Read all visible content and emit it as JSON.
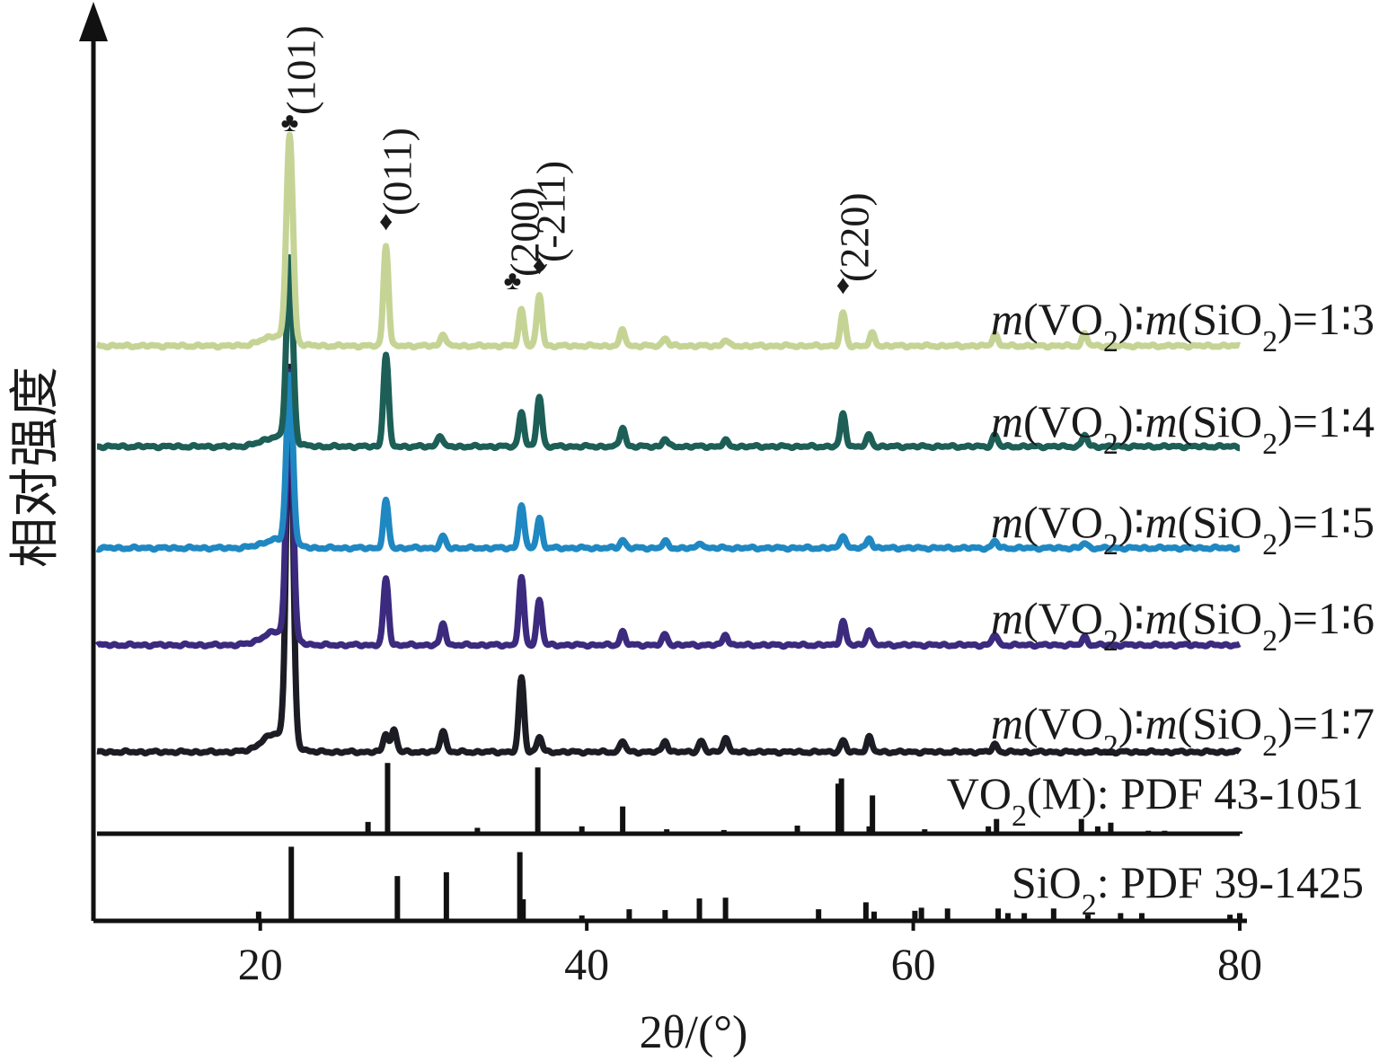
{
  "chart_data": {
    "type": "line",
    "xlabel": "2θ/(°)",
    "ylabel": "相对强度",
    "xlim": [
      10,
      80
    ],
    "x_ticks": [
      "20",
      "40",
      "60",
      "80"
    ],
    "grid": false,
    "legend": "labels at right of each curve",
    "series": [
      {
        "name": "m(VO₂)∶m(SiO₂)=1∶3",
        "label_parts": [
          "m",
          "(VO",
          "2",
          ")∶",
          "m",
          "(SiO",
          "2",
          ")=1∶3"
        ],
        "color": "#c5d495",
        "peaks": [
          [
            21.8,
            1.0
          ],
          [
            27.7,
            0.49
          ],
          [
            31.2,
            0.06
          ],
          [
            36.0,
            0.18
          ],
          [
            37.1,
            0.25
          ],
          [
            42.2,
            0.08
          ],
          [
            44.8,
            0.04
          ],
          [
            48.5,
            0.03
          ],
          [
            55.7,
            0.16
          ],
          [
            57.5,
            0.06
          ],
          [
            65.0,
            0.06
          ],
          [
            70.5,
            0.06
          ]
        ]
      },
      {
        "name": "m(VO₂)∶m(SiO₂)=1∶4",
        "label_parts": [
          "m",
          "(VO",
          "2",
          ")∶",
          "m",
          "(SiO",
          "2",
          ")=1∶4"
        ],
        "color": "#1d5f57",
        "peaks": [
          [
            21.8,
            0.95
          ],
          [
            27.7,
            0.48
          ],
          [
            31.0,
            0.06
          ],
          [
            36.0,
            0.18
          ],
          [
            37.1,
            0.26
          ],
          [
            42.2,
            0.1
          ],
          [
            44.8,
            0.04
          ],
          [
            48.5,
            0.03
          ],
          [
            55.7,
            0.17
          ],
          [
            57.3,
            0.06
          ],
          [
            65.0,
            0.06
          ],
          [
            70.5,
            0.06
          ]
        ]
      },
      {
        "name": "m(VO₂)∶m(SiO₂)=1∶5",
        "label_parts": [
          "m",
          "(VO",
          "2",
          ")∶",
          "m",
          "(SiO",
          "2",
          ")=1∶5"
        ],
        "color": "#1f88c2",
        "peaks": [
          [
            21.8,
            1.0
          ],
          [
            27.7,
            0.28
          ],
          [
            31.2,
            0.07
          ],
          [
            36.0,
            0.26
          ],
          [
            37.1,
            0.18
          ],
          [
            42.2,
            0.05
          ],
          [
            44.8,
            0.04
          ],
          [
            47.0,
            0.03
          ],
          [
            55.7,
            0.08
          ],
          [
            57.3,
            0.06
          ],
          [
            65.0,
            0.04
          ],
          [
            70.5,
            0.03
          ]
        ]
      },
      {
        "name": "m(VO₂)∶m(SiO₂)=1∶6",
        "label_parts": [
          "m",
          "(VO",
          "2",
          ")∶",
          "m",
          "(SiO",
          "2",
          ")=1∶6"
        ],
        "color": "#3c2a7e",
        "peaks": [
          [
            21.8,
            1.0
          ],
          [
            27.7,
            0.25
          ],
          [
            31.2,
            0.08
          ],
          [
            36.0,
            0.25
          ],
          [
            37.1,
            0.17
          ],
          [
            42.2,
            0.05
          ],
          [
            44.8,
            0.04
          ],
          [
            48.5,
            0.04
          ],
          [
            55.7,
            0.09
          ],
          [
            57.3,
            0.06
          ],
          [
            65.0,
            0.04
          ],
          [
            70.5,
            0.03
          ]
        ]
      },
      {
        "name": "m(VO₂)∶m(SiO₂)=1∶7",
        "label_parts": [
          "m",
          "(VO",
          "2",
          ")∶",
          "m",
          "(SiO",
          "2",
          ")=1∶7"
        ],
        "color": "#1c1c24",
        "peaks": [
          [
            21.8,
            1.0
          ],
          [
            27.7,
            0.05
          ],
          [
            28.2,
            0.06
          ],
          [
            31.2,
            0.06
          ],
          [
            36.0,
            0.2
          ],
          [
            37.1,
            0.04
          ],
          [
            42.2,
            0.03
          ],
          [
            44.8,
            0.03
          ],
          [
            47.0,
            0.03
          ],
          [
            48.5,
            0.04
          ],
          [
            55.7,
            0.03
          ],
          [
            57.3,
            0.04
          ],
          [
            65.0,
            0.02
          ]
        ]
      }
    ],
    "reference_patterns": [
      {
        "name": "VO₂(M): PDF 43-1051",
        "label_parts": [
          "VO",
          "2",
          "(M): PDF 43-1051"
        ],
        "lines": [
          [
            26.6,
            0.16
          ],
          [
            27.8,
            0.96
          ],
          [
            33.3,
            0.08
          ],
          [
            37.0,
            0.9
          ],
          [
            39.2,
            0.02
          ],
          [
            39.7,
            0.1
          ],
          [
            42.2,
            0.37
          ],
          [
            44.6,
            0.03
          ],
          [
            44.9,
            0.06
          ],
          [
            48.4,
            0.05
          ],
          [
            52.9,
            0.11
          ],
          [
            55.4,
            0.68
          ],
          [
            55.6,
            0.75
          ],
          [
            57.5,
            0.52
          ],
          [
            57.3,
            0.1
          ],
          [
            60.7,
            0.06
          ],
          [
            64.6,
            0.1
          ],
          [
            65.1,
            0.2
          ],
          [
            70.3,
            0.2
          ],
          [
            71.3,
            0.1
          ],
          [
            72.1,
            0.15
          ],
          [
            74.4,
            0.04
          ],
          [
            75.4,
            0.04
          ],
          [
            76.4,
            0.03
          ],
          [
            79.0,
            0.03
          ],
          [
            80.0,
            0.03
          ]
        ]
      },
      {
        "name": "SiO₂: PDF 39-1425",
        "label_parts": [
          "SiO",
          "2",
          ": PDF 39-1425"
        ],
        "lines": [
          [
            19.9,
            0.12
          ],
          [
            21.9,
            0.96
          ],
          [
            28.4,
            0.58
          ],
          [
            31.4,
            0.63
          ],
          [
            35.9,
            0.89
          ],
          [
            36.1,
            0.28
          ],
          [
            39.7,
            0.07
          ],
          [
            42.6,
            0.15
          ],
          [
            44.8,
            0.14
          ],
          [
            46.9,
            0.29
          ],
          [
            48.5,
            0.3
          ],
          [
            54.2,
            0.15
          ],
          [
            57.1,
            0.24
          ],
          [
            57.6,
            0.12
          ],
          [
            60.1,
            0.13
          ],
          [
            60.5,
            0.17
          ],
          [
            62.1,
            0.16
          ],
          [
            65.2,
            0.16
          ],
          [
            65.8,
            0.1
          ],
          [
            66.8,
            0.1
          ],
          [
            68.6,
            0.16
          ],
          [
            70.7,
            0.08
          ],
          [
            72.7,
            0.1
          ],
          [
            74.0,
            0.1
          ],
          [
            79.4,
            0.08
          ],
          [
            80.0,
            0.1
          ]
        ]
      }
    ],
    "annotations": [
      {
        "label": "(101)",
        "symbol": "♣",
        "x": 21.8
      },
      {
        "label": "(011)",
        "symbol": "♦",
        "x": 27.7
      },
      {
        "label": "(200)",
        "symbol": "♣",
        "x": 36.0
      },
      {
        "label": "(-211)",
        "symbol": "♦",
        "x": 37.1
      },
      {
        "label": "(220)",
        "symbol": "♦",
        "x": 55.7
      }
    ]
  }
}
